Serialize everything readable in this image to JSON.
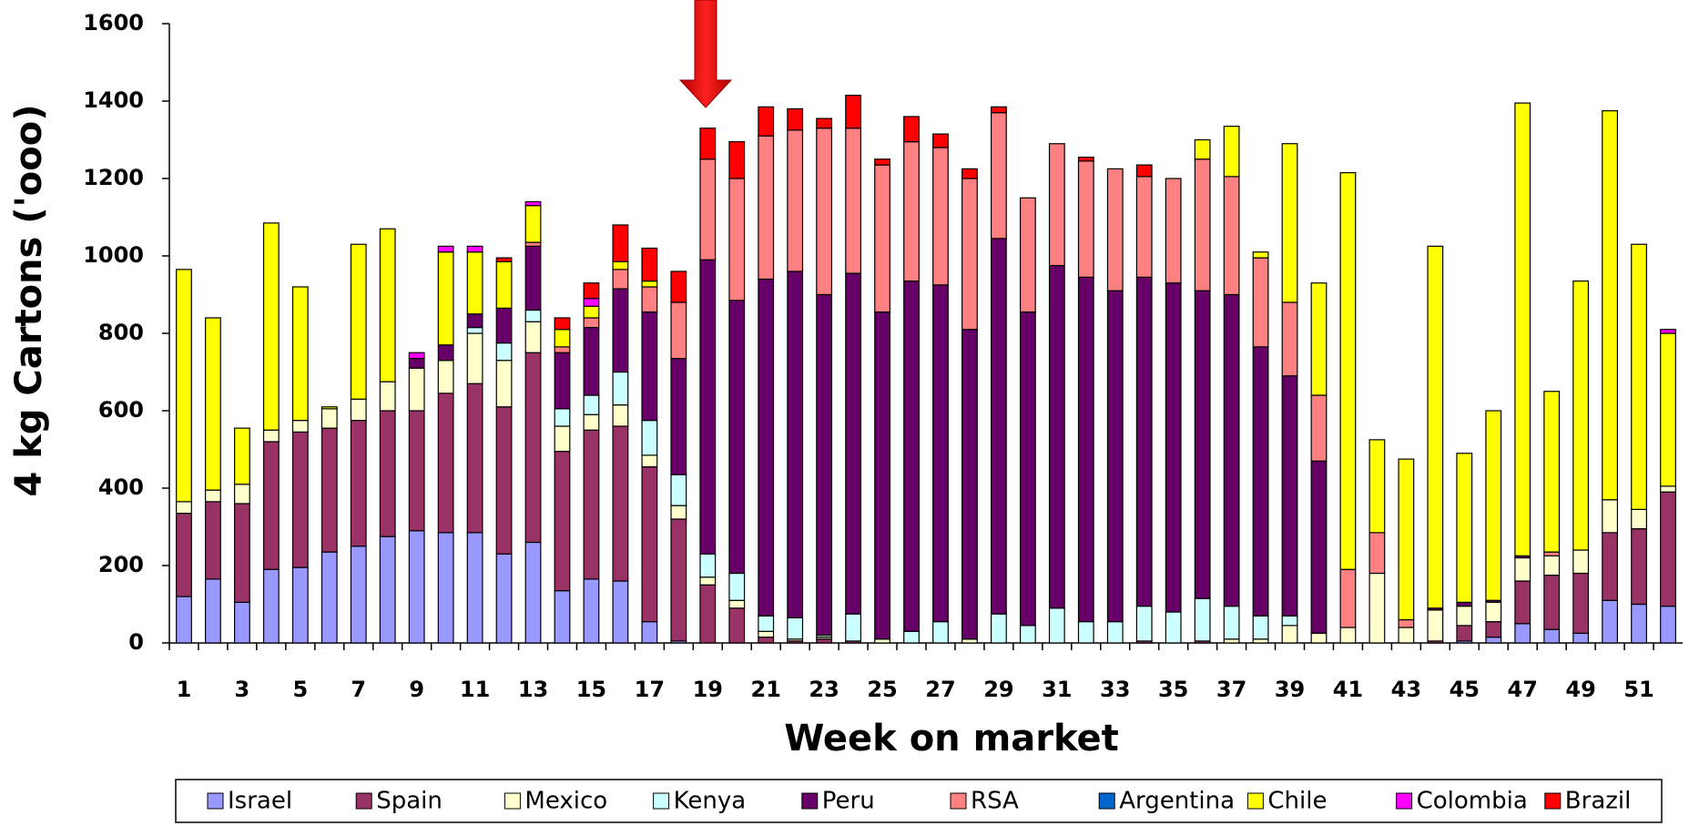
{
  "chart_data": {
    "type": "stacked_bar",
    "x_label": "Week on market",
    "y_label": "4 kg Cartons ('ooo)",
    "categories": [
      "1",
      null,
      "3",
      null,
      "5",
      null,
      "7",
      null,
      "9",
      null,
      "11",
      null,
      "13",
      null,
      "15",
      null,
      "17",
      null,
      "19",
      null,
      "21",
      null,
      "23",
      null,
      "25",
      null,
      "27",
      null,
      "29",
      null,
      "31",
      null,
      "33",
      null,
      "35",
      null,
      "37",
      null,
      "39",
      null,
      "41",
      null,
      "43",
      null,
      "45",
      null,
      "47",
      null,
      "49",
      null,
      "51",
      null
    ],
    "ylim": [
      0,
      1600
    ],
    "yticks": [
      0,
      200,
      400,
      600,
      800,
      1000,
      1200,
      1400,
      1600
    ],
    "series": [
      {
        "name": "Israel",
        "color": "#9999ff",
        "values": [
          120,
          165,
          105,
          190,
          195,
          235,
          250,
          275,
          290,
          285,
          285,
          230,
          260,
          135,
          165,
          160,
          55,
          5,
          0,
          0,
          0,
          0,
          0,
          0,
          0,
          0,
          0,
          0,
          0,
          0,
          0,
          0,
          0,
          0,
          0,
          0,
          0,
          0,
          0,
          0,
          0,
          0,
          0,
          0,
          5,
          15,
          50,
          35,
          25,
          110,
          100,
          95
        ]
      },
      {
        "name": "Spain",
        "color": "#993366",
        "values": [
          215,
          200,
          255,
          330,
          350,
          320,
          325,
          325,
          310,
          360,
          385,
          380,
          490,
          360,
          385,
          400,
          400,
          315,
          150,
          90,
          15,
          5,
          10,
          5,
          0,
          0,
          0,
          0,
          0,
          0,
          0,
          0,
          0,
          5,
          0,
          5,
          0,
          0,
          0,
          0,
          0,
          0,
          0,
          5,
          40,
          40,
          110,
          140,
          155,
          175,
          195,
          295
        ]
      },
      {
        "name": "Mexico",
        "color": "#ffffcc",
        "values": [
          30,
          30,
          50,
          30,
          30,
          50,
          55,
          75,
          110,
          85,
          130,
          120,
          80,
          65,
          40,
          55,
          30,
          35,
          20,
          20,
          15,
          5,
          5,
          0,
          10,
          0,
          0,
          10,
          0,
          0,
          0,
          0,
          0,
          0,
          0,
          0,
          10,
          10,
          45,
          25,
          40,
          180,
          40,
          80,
          50,
          50,
          60,
          50,
          60,
          85,
          50,
          15
        ]
      },
      {
        "name": "Kenya",
        "color": "#ccffff",
        "values": [
          0,
          0,
          0,
          0,
          0,
          0,
          0,
          0,
          0,
          0,
          15,
          45,
          30,
          45,
          50,
          85,
          90,
          80,
          60,
          70,
          40,
          55,
          5,
          70,
          0,
          30,
          55,
          0,
          75,
          45,
          90,
          55,
          55,
          90,
          80,
          110,
          85,
          60,
          25,
          0,
          0,
          0,
          0,
          0,
          0,
          0,
          0,
          0,
          0,
          0,
          0,
          0
        ]
      },
      {
        "name": "Peru",
        "color": "#660066",
        "values": [
          0,
          0,
          0,
          0,
          0,
          0,
          0,
          0,
          25,
          40,
          35,
          90,
          165,
          145,
          175,
          215,
          280,
          300,
          760,
          705,
          870,
          895,
          880,
          880,
          845,
          905,
          870,
          800,
          970,
          810,
          885,
          890,
          855,
          850,
          850,
          795,
          805,
          695,
          620,
          445,
          0,
          0,
          0,
          5,
          10,
          5,
          5,
          0,
          0,
          0,
          0,
          0
        ]
      },
      {
        "name": "RSA",
        "color": "#ff8080",
        "values": [
          0,
          0,
          0,
          0,
          0,
          0,
          0,
          0,
          0,
          0,
          0,
          0,
          10,
          15,
          25,
          50,
          65,
          145,
          260,
          315,
          370,
          365,
          430,
          375,
          380,
          360,
          355,
          390,
          325,
          295,
          315,
          300,
          315,
          260,
          270,
          340,
          305,
          230,
          190,
          170,
          150,
          105,
          20,
          0,
          0,
          0,
          0,
          10,
          0,
          0,
          0,
          0
        ]
      },
      {
        "name": "Argentina",
        "color": "#0066cc",
        "values": [
          0,
          0,
          0,
          0,
          0,
          0,
          0,
          0,
          0,
          0,
          0,
          0,
          0,
          0,
          0,
          0,
          0,
          0,
          0,
          0,
          0,
          0,
          0,
          0,
          0,
          0,
          0,
          0,
          0,
          0,
          0,
          0,
          0,
          0,
          0,
          0,
          0,
          0,
          0,
          0,
          0,
          0,
          0,
          0,
          0,
          0,
          0,
          0,
          0,
          0,
          0,
          0
        ]
      },
      {
        "name": "Chile",
        "color": "#ffff00",
        "values": [
          600,
          445,
          145,
          535,
          345,
          5,
          400,
          395,
          0,
          240,
          160,
          120,
          95,
          45,
          30,
          20,
          15,
          0,
          0,
          0,
          0,
          0,
          0,
          0,
          0,
          0,
          0,
          0,
          0,
          0,
          0,
          0,
          0,
          0,
          0,
          50,
          130,
          15,
          410,
          290,
          1025,
          240,
          415,
          935,
          385,
          490,
          1170,
          415,
          695,
          1005,
          685,
          395
        ]
      },
      {
        "name": "Colombia",
        "color": "#ff00ff",
        "values": [
          0,
          0,
          0,
          0,
          0,
          0,
          0,
          0,
          15,
          15,
          15,
          0,
          10,
          0,
          20,
          0,
          0,
          0,
          0,
          0,
          0,
          0,
          0,
          0,
          0,
          0,
          0,
          0,
          0,
          0,
          0,
          0,
          0,
          0,
          0,
          0,
          0,
          0,
          0,
          0,
          0,
          0,
          0,
          0,
          0,
          0,
          0,
          0,
          0,
          0,
          0,
          10
        ]
      },
      {
        "name": "Brazil",
        "color": "#ff0000",
        "values": [
          0,
          0,
          0,
          0,
          0,
          0,
          0,
          0,
          0,
          0,
          0,
          10,
          0,
          30,
          40,
          95,
          85,
          80,
          80,
          95,
          75,
          55,
          25,
          85,
          15,
          65,
          35,
          25,
          15,
          0,
          0,
          10,
          0,
          30,
          0,
          0,
          0,
          0,
          0,
          0,
          0,
          0,
          0,
          0,
          0,
          0,
          0,
          0,
          0,
          0,
          0,
          0
        ]
      }
    ]
  }
}
